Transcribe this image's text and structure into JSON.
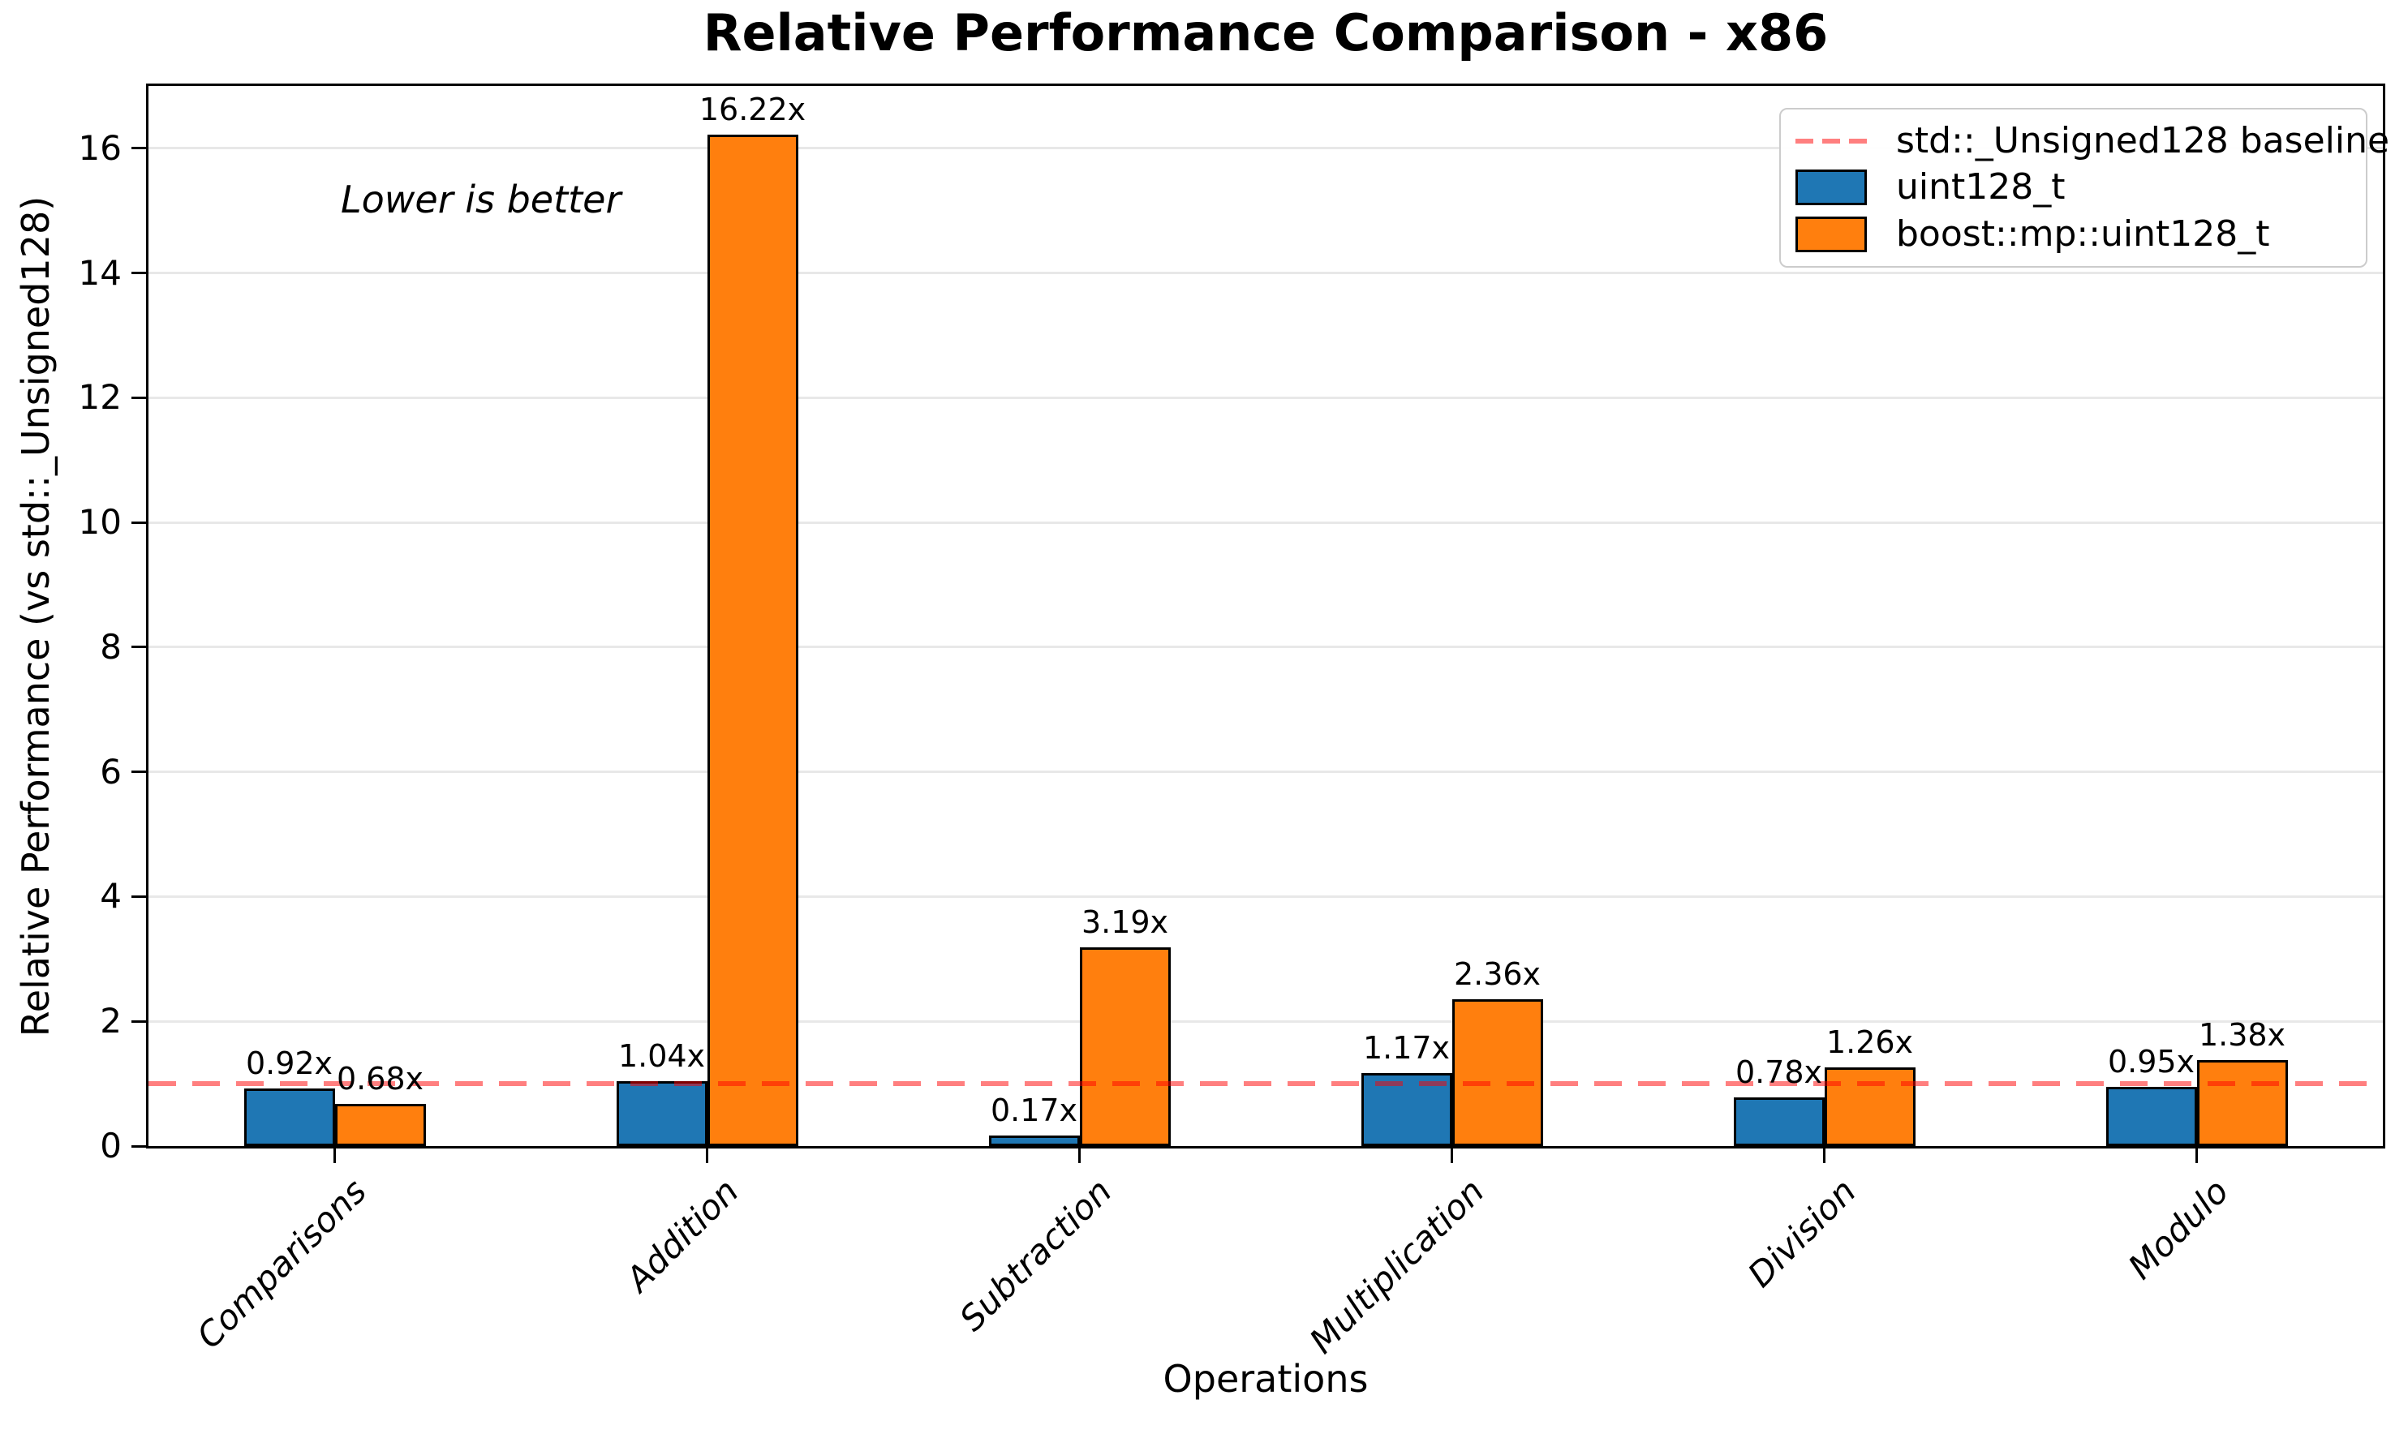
{
  "chart_data": {
    "type": "bar",
    "title": "Relative Performance Comparison - x86",
    "xlabel": "Operations",
    "ylabel": "Relative Performance (vs std::_Unsigned128)",
    "annotation": "Lower is better",
    "categories": [
      "Comparisons",
      "Addition",
      "Subtraction",
      "Multiplication",
      "Division",
      "Modulo"
    ],
    "series": [
      {
        "name": "uint128_t",
        "color": "#1f77b4",
        "values": [
          0.92,
          1.04,
          0.17,
          1.17,
          0.78,
          0.95
        ],
        "bar_labels": [
          "0.92x",
          "1.04x",
          "0.17x",
          "1.17x",
          "0.78x",
          "0.95x"
        ]
      },
      {
        "name": "boost::mp::uint128_t",
        "color": "#ff7f0e",
        "values": [
          0.68,
          16.22,
          3.19,
          2.36,
          1.26,
          1.38
        ],
        "bar_labels": [
          "0.68x",
          "16.22x",
          "3.19x",
          "2.36x",
          "1.26x",
          "1.38x"
        ]
      }
    ],
    "baseline": {
      "value": 1.0,
      "label": "std::_Unsigned128 baseline",
      "color": "rgba(255,0,0,0.5)"
    },
    "yticks": [
      0,
      2,
      4,
      6,
      8,
      10,
      12,
      14,
      16
    ],
    "ylim": [
      0,
      17
    ],
    "grid": "horizontal",
    "grid_color": "#e8e8e8",
    "edge_color": "#000000",
    "legend_position": "upper-right",
    "bar_value_suffix": "x"
  }
}
